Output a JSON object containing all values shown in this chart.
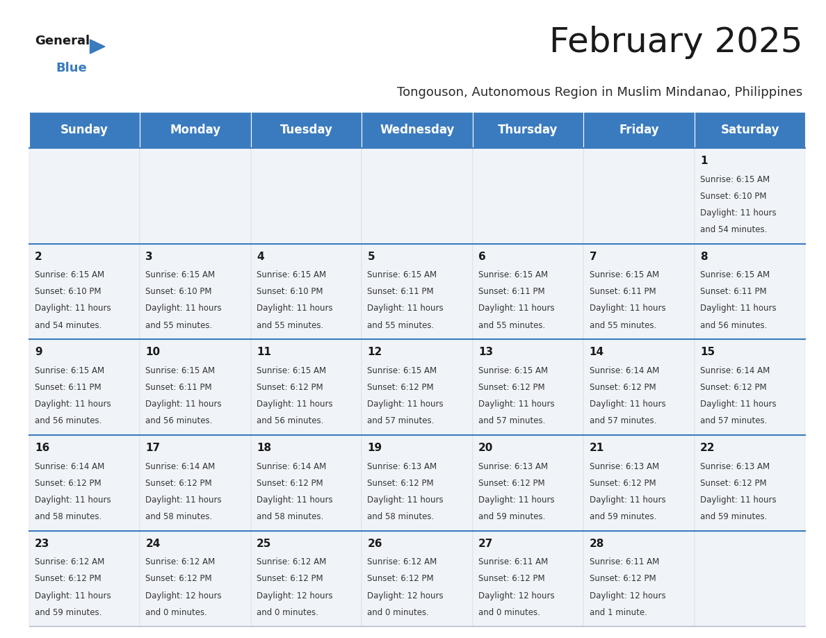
{
  "title": "February 2025",
  "subtitle": "Tongouson, Autonomous Region in Muslim Mindanao, Philippines",
  "header_color": "#3a7bbf",
  "header_text_color": "#ffffff",
  "bg_odd": "#f0f4f8",
  "bg_even": "#ffffff",
  "day_names": [
    "Sunday",
    "Monday",
    "Tuesday",
    "Wednesday",
    "Thursday",
    "Friday",
    "Saturday"
  ],
  "title_fontsize": 36,
  "subtitle_fontsize": 13,
  "header_fontsize": 12,
  "day_num_fontsize": 11,
  "info_fontsize": 8.5,
  "divider_color": "#3a7bbf",
  "calendar_data": [
    [
      null,
      null,
      null,
      null,
      null,
      null,
      {
        "day": "1",
        "sunrise": "6:15 AM",
        "sunset": "6:10 PM",
        "daylight": "11 hours\nand 54 minutes."
      }
    ],
    [
      {
        "day": "2",
        "sunrise": "6:15 AM",
        "sunset": "6:10 PM",
        "daylight": "11 hours\nand 54 minutes."
      },
      {
        "day": "3",
        "sunrise": "6:15 AM",
        "sunset": "6:10 PM",
        "daylight": "11 hours\nand 55 minutes."
      },
      {
        "day": "4",
        "sunrise": "6:15 AM",
        "sunset": "6:10 PM",
        "daylight": "11 hours\nand 55 minutes."
      },
      {
        "day": "5",
        "sunrise": "6:15 AM",
        "sunset": "6:11 PM",
        "daylight": "11 hours\nand 55 minutes."
      },
      {
        "day": "6",
        "sunrise": "6:15 AM",
        "sunset": "6:11 PM",
        "daylight": "11 hours\nand 55 minutes."
      },
      {
        "day": "7",
        "sunrise": "6:15 AM",
        "sunset": "6:11 PM",
        "daylight": "11 hours\nand 55 minutes."
      },
      {
        "day": "8",
        "sunrise": "6:15 AM",
        "sunset": "6:11 PM",
        "daylight": "11 hours\nand 56 minutes."
      }
    ],
    [
      {
        "day": "9",
        "sunrise": "6:15 AM",
        "sunset": "6:11 PM",
        "daylight": "11 hours\nand 56 minutes."
      },
      {
        "day": "10",
        "sunrise": "6:15 AM",
        "sunset": "6:11 PM",
        "daylight": "11 hours\nand 56 minutes."
      },
      {
        "day": "11",
        "sunrise": "6:15 AM",
        "sunset": "6:12 PM",
        "daylight": "11 hours\nand 56 minutes."
      },
      {
        "day": "12",
        "sunrise": "6:15 AM",
        "sunset": "6:12 PM",
        "daylight": "11 hours\nand 57 minutes."
      },
      {
        "day": "13",
        "sunrise": "6:15 AM",
        "sunset": "6:12 PM",
        "daylight": "11 hours\nand 57 minutes."
      },
      {
        "day": "14",
        "sunrise": "6:14 AM",
        "sunset": "6:12 PM",
        "daylight": "11 hours\nand 57 minutes."
      },
      {
        "day": "15",
        "sunrise": "6:14 AM",
        "sunset": "6:12 PM",
        "daylight": "11 hours\nand 57 minutes."
      }
    ],
    [
      {
        "day": "16",
        "sunrise": "6:14 AM",
        "sunset": "6:12 PM",
        "daylight": "11 hours\nand 58 minutes."
      },
      {
        "day": "17",
        "sunrise": "6:14 AM",
        "sunset": "6:12 PM",
        "daylight": "11 hours\nand 58 minutes."
      },
      {
        "day": "18",
        "sunrise": "6:14 AM",
        "sunset": "6:12 PM",
        "daylight": "11 hours\nand 58 minutes."
      },
      {
        "day": "19",
        "sunrise": "6:13 AM",
        "sunset": "6:12 PM",
        "daylight": "11 hours\nand 58 minutes."
      },
      {
        "day": "20",
        "sunrise": "6:13 AM",
        "sunset": "6:12 PM",
        "daylight": "11 hours\nand 59 minutes."
      },
      {
        "day": "21",
        "sunrise": "6:13 AM",
        "sunset": "6:12 PM",
        "daylight": "11 hours\nand 59 minutes."
      },
      {
        "day": "22",
        "sunrise": "6:13 AM",
        "sunset": "6:12 PM",
        "daylight": "11 hours\nand 59 minutes."
      }
    ],
    [
      {
        "day": "23",
        "sunrise": "6:12 AM",
        "sunset": "6:12 PM",
        "daylight": "11 hours\nand 59 minutes."
      },
      {
        "day": "24",
        "sunrise": "6:12 AM",
        "sunset": "6:12 PM",
        "daylight": "12 hours\nand 0 minutes."
      },
      {
        "day": "25",
        "sunrise": "6:12 AM",
        "sunset": "6:12 PM",
        "daylight": "12 hours\nand 0 minutes."
      },
      {
        "day": "26",
        "sunrise": "6:12 AM",
        "sunset": "6:12 PM",
        "daylight": "12 hours\nand 0 minutes."
      },
      {
        "day": "27",
        "sunrise": "6:11 AM",
        "sunset": "6:12 PM",
        "daylight": "12 hours\nand 0 minutes."
      },
      {
        "day": "28",
        "sunrise": "6:11 AM",
        "sunset": "6:12 PM",
        "daylight": "12 hours\nand 1 minute."
      },
      null
    ]
  ]
}
